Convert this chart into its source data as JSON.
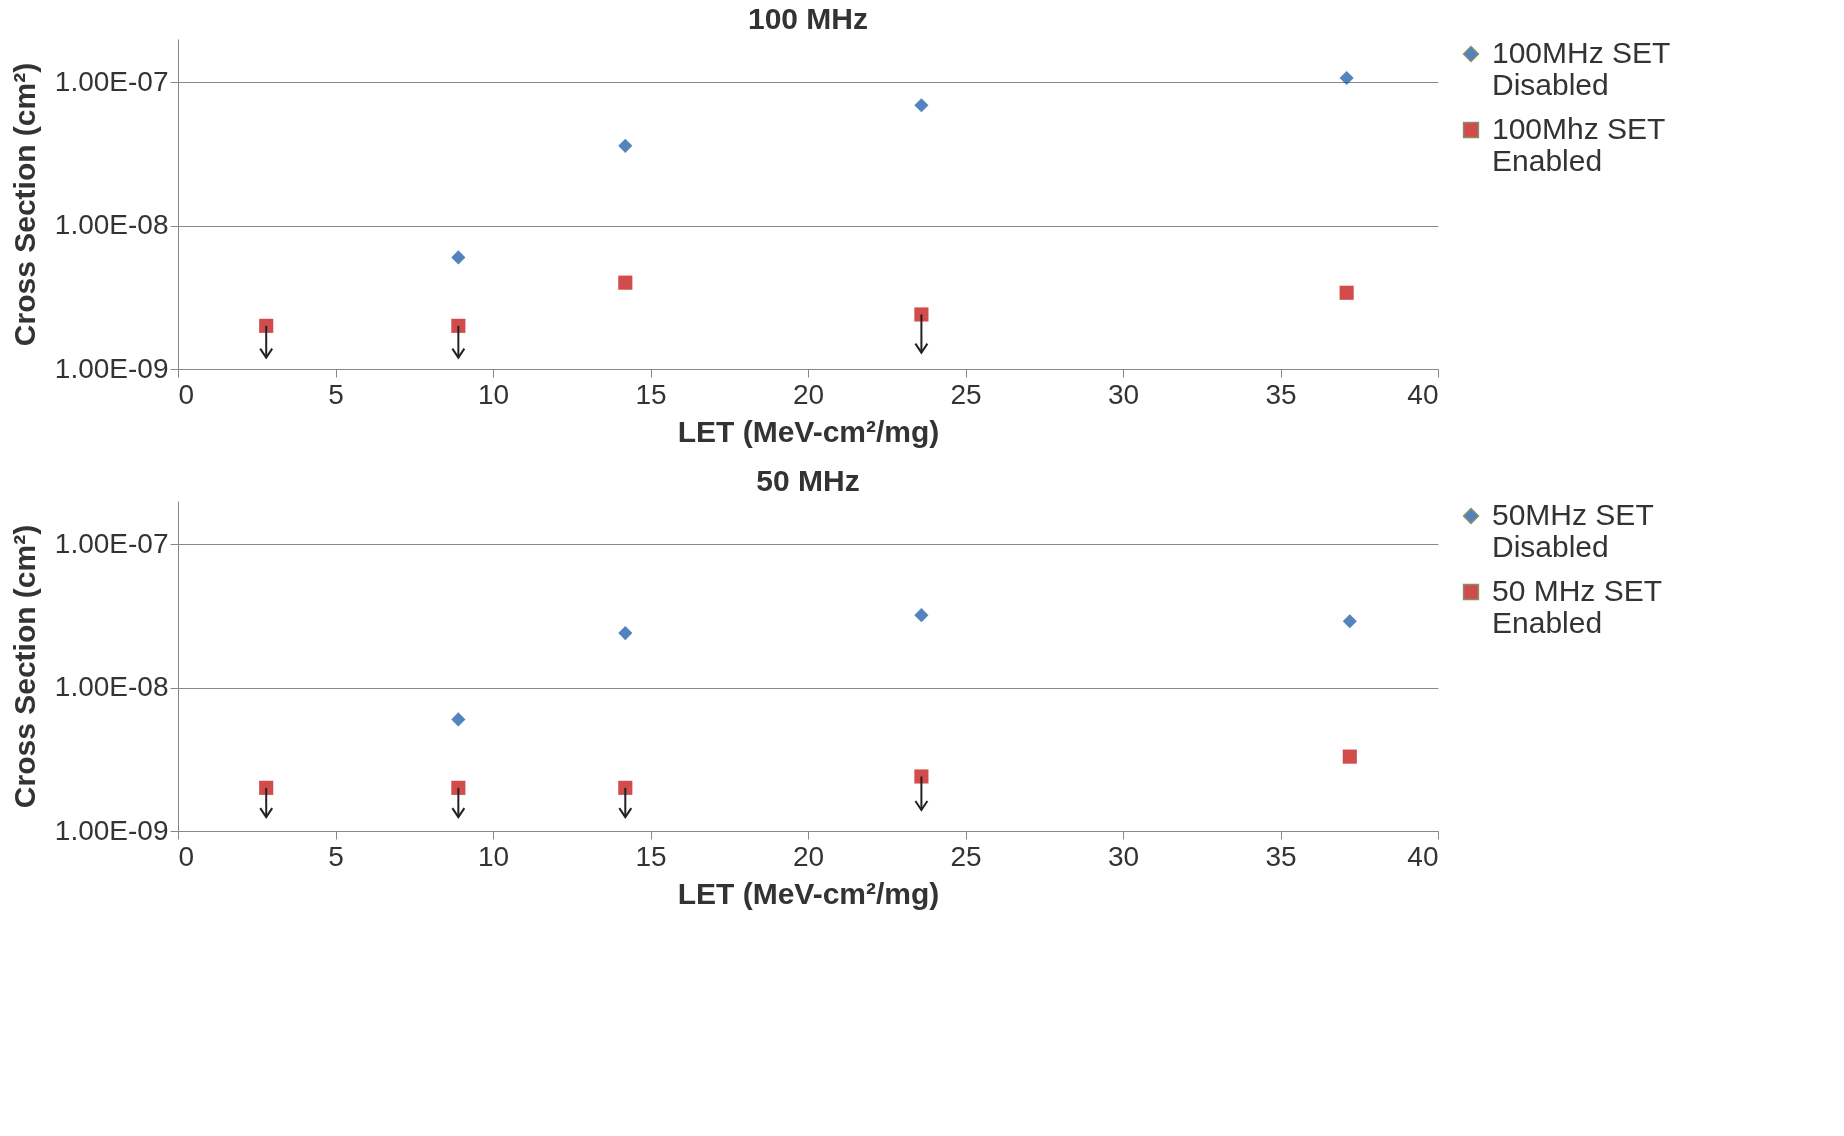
{
  "chart_data": [
    {
      "type": "scatter",
      "title": "100 MHz",
      "xlabel": "LET (MeV-cm²/mg)",
      "ylabel": "Cross Section (cm²)",
      "log": "y",
      "grid": "y",
      "legend": "right",
      "xlim": [
        0,
        40
      ],
      "xticks": [
        0,
        5,
        10,
        15,
        20,
        25,
        30,
        35,
        40
      ],
      "ylim": [
        1e-09,
        2e-07
      ],
      "yticks": [
        {
          "value": 1e-09,
          "label": "1.00E-09"
        },
        {
          "value": 1e-08,
          "label": "1.00E-08"
        },
        {
          "value": 1e-07,
          "label": "1.00E-07"
        }
      ],
      "series": [
        {
          "name": "100MHz SET Disabled",
          "color": "#0b4ea2",
          "marker": "diamond",
          "x": [
            8.9,
            14.2,
            23.6,
            37.1
          ],
          "values": [
            6e-09,
            3.6e-08,
            6.9e-08,
            1.07e-07
          ]
        },
        {
          "name": "100Mhz SET Enabled",
          "color": "#c00000",
          "marker": "square",
          "x": [
            2.8,
            8.9,
            14.2,
            23.6,
            37.1
          ],
          "values": [
            2e-09,
            2e-09,
            4e-09,
            2.4e-09,
            3.4e-09
          ],
          "errors": [
            [
              1.2e-09,
              2e-09
            ],
            [
              1.2e-09,
              2e-09
            ],
            null,
            [
              1.3e-09,
              2.4e-09
            ],
            null
          ]
        }
      ]
    },
    {
      "type": "scatter",
      "title": "50 MHz",
      "xlabel": "LET (MeV-cm²/mg)",
      "ylabel": "Cross Section (cm²)",
      "log": "y",
      "grid": "y",
      "legend": "right",
      "xlim": [
        0,
        40
      ],
      "xticks": [
        0,
        5,
        10,
        15,
        20,
        25,
        30,
        35,
        40
      ],
      "ylim": [
        1e-09,
        2e-07
      ],
      "yticks": [
        {
          "value": 1e-09,
          "label": "1.00E-09"
        },
        {
          "value": 1e-08,
          "label": "1.00E-08"
        },
        {
          "value": 1e-07,
          "label": "1.00E-07"
        }
      ],
      "series": [
        {
          "name": "50MHz SET Disabled",
          "color": "#0b4ea2",
          "marker": "diamond",
          "x": [
            8.9,
            14.2,
            23.6,
            37.2
          ],
          "values": [
            6e-09,
            2.4e-08,
            3.2e-08,
            2.9e-08
          ]
        },
        {
          "name": "50 MHz SET Enabled",
          "color": "#c00000",
          "marker": "square",
          "x": [
            2.8,
            8.9,
            14.2,
            23.6,
            37.2
          ],
          "values": [
            2e-09,
            2e-09,
            2e-09,
            2.4e-09,
            3.3e-09
          ],
          "errors": [
            [
              1.25e-09,
              2e-09
            ],
            [
              1.25e-09,
              2e-09
            ],
            [
              1.25e-09,
              2e-09
            ],
            [
              1.4e-09,
              2.4e-09
            ],
            null
          ]
        }
      ]
    }
  ]
}
